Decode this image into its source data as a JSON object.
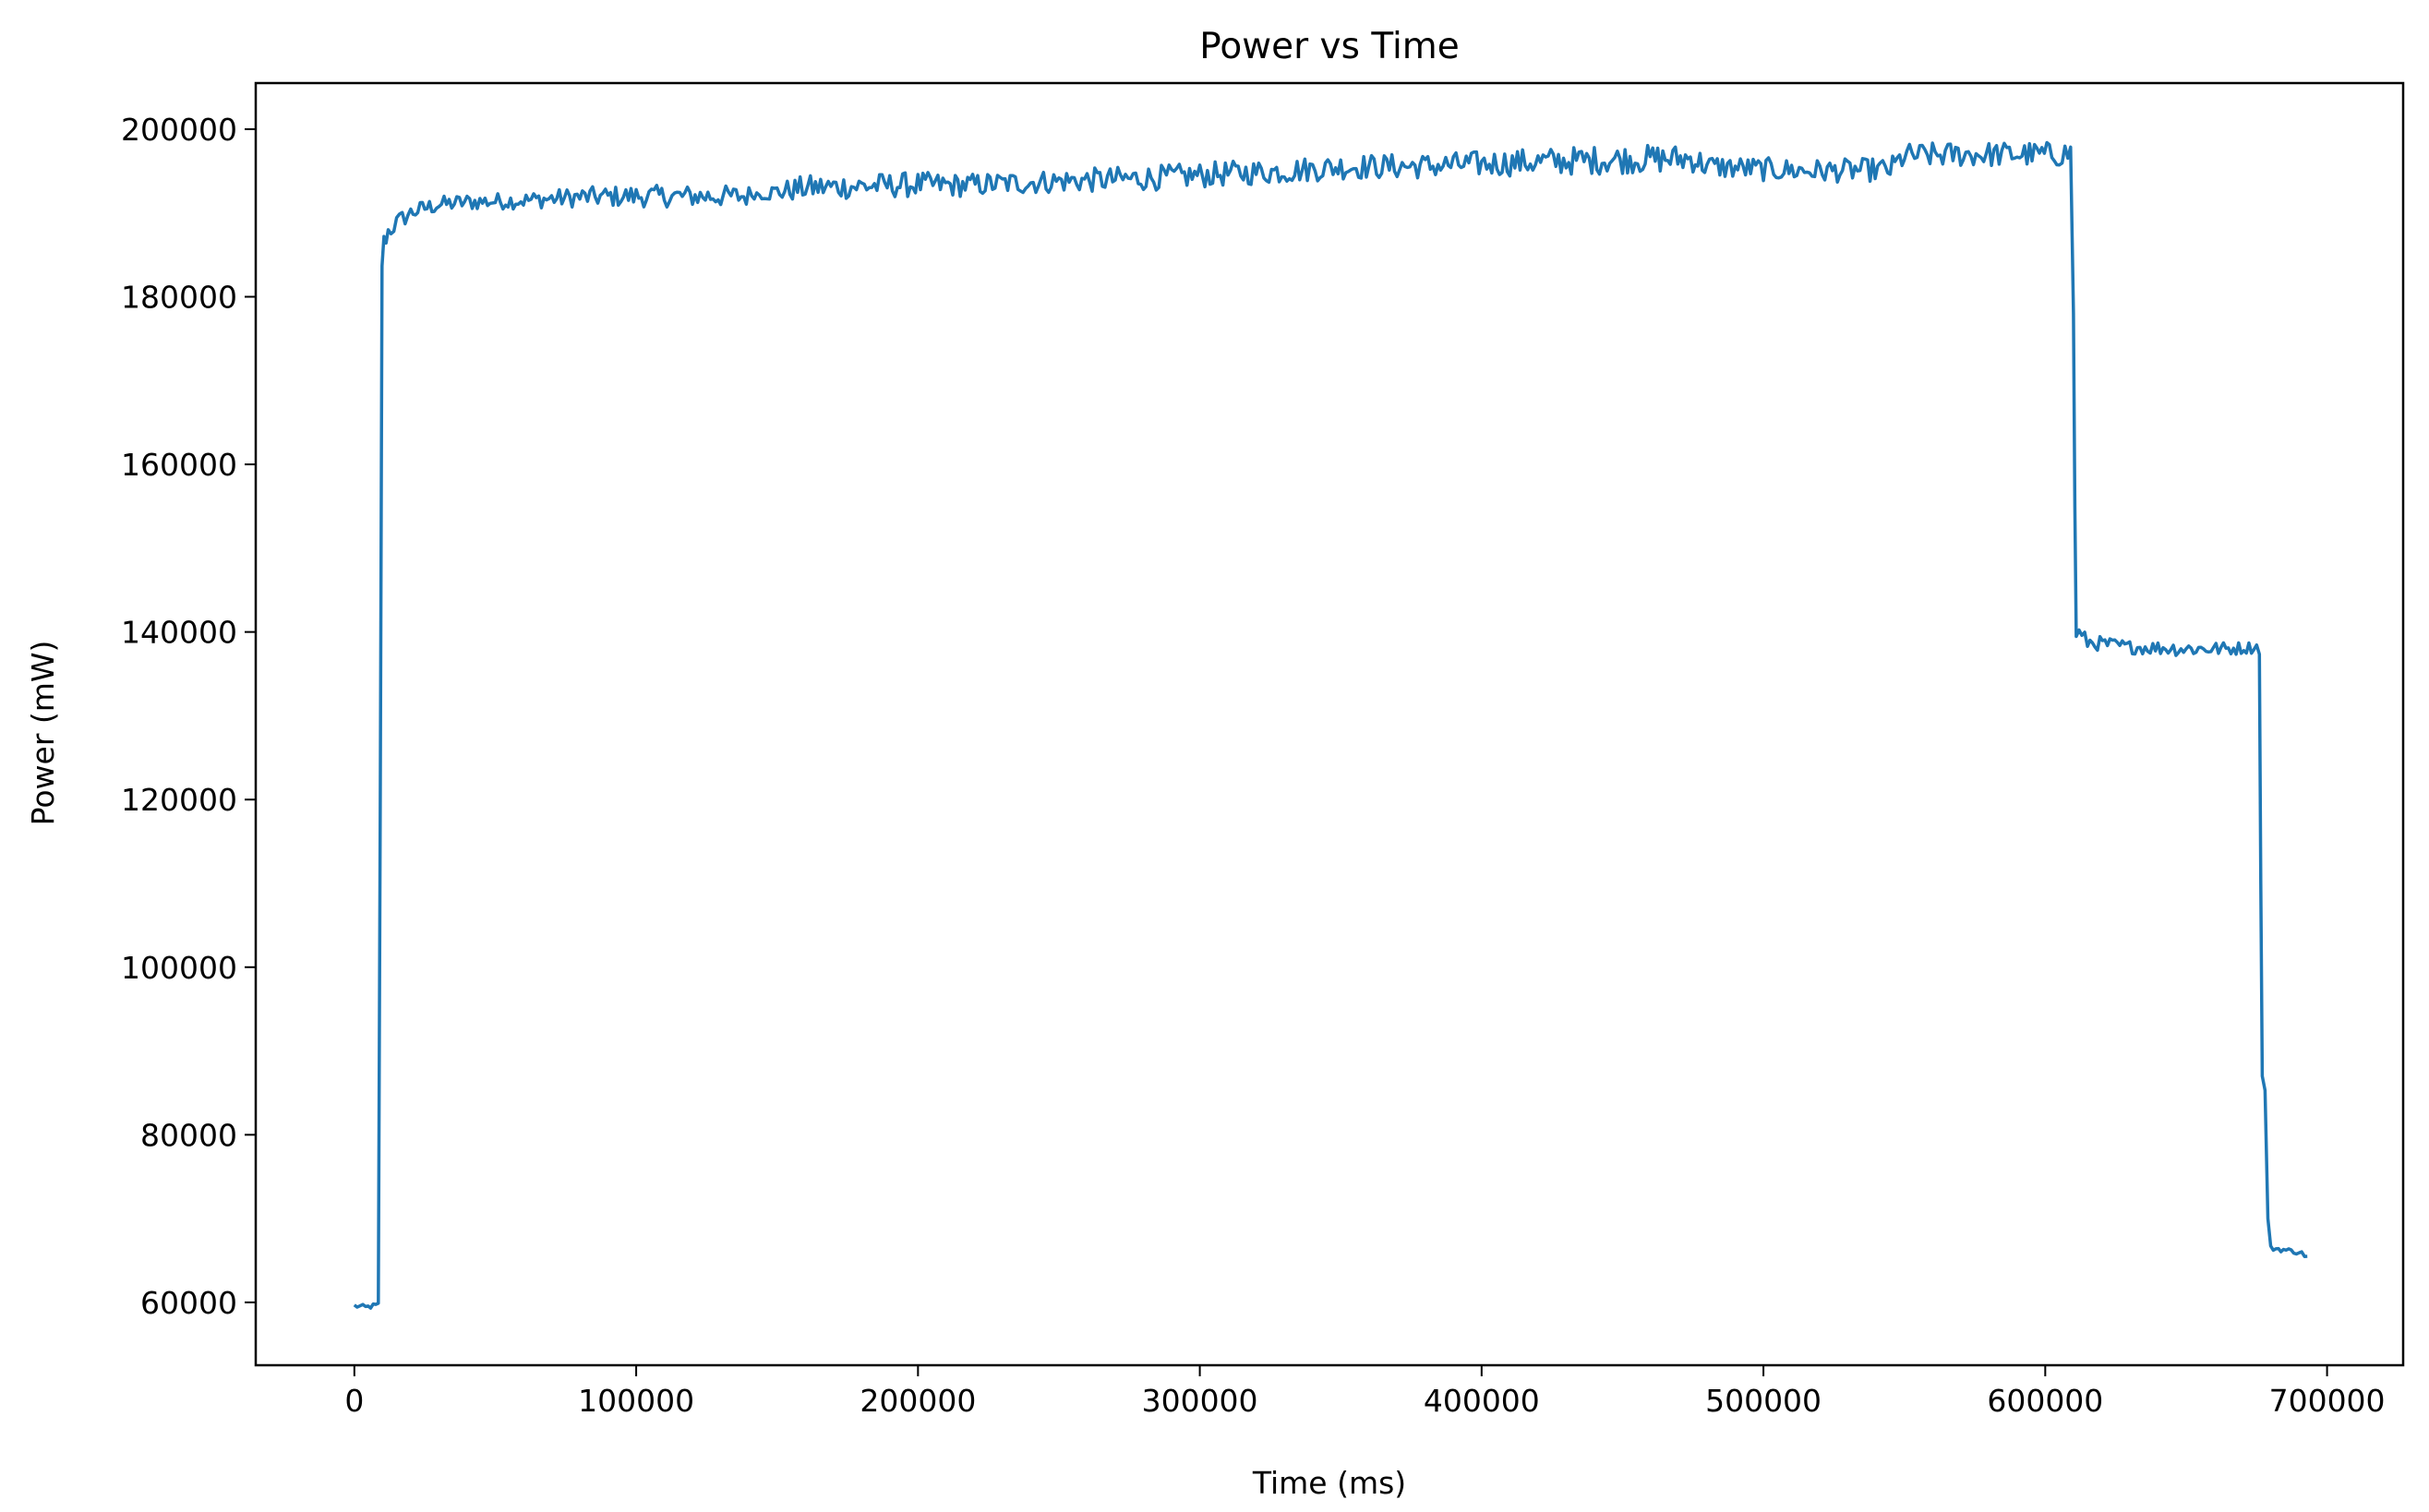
{
  "chart_data": {
    "type": "line",
    "title": "Power vs Time",
    "xlabel": "Time (ms)",
    "ylabel": "Power (mW)",
    "xlim": [
      -35000,
      727000
    ],
    "ylim": [
      52500,
      205500
    ],
    "xticks": [
      0,
      100000,
      200000,
      300000,
      400000,
      500000,
      600000,
      700000
    ],
    "xtick_labels": [
      "0",
      "100000",
      "200000",
      "300000",
      "400000",
      "500000",
      "600000",
      "700000"
    ],
    "yticks": [
      60000,
      80000,
      100000,
      120000,
      140000,
      160000,
      180000,
      200000
    ],
    "ytick_labels": [
      "60000",
      "80000",
      "100000",
      "120000",
      "140000",
      "160000",
      "180000",
      "200000"
    ],
    "grid": false,
    "line_color": "#1f77b4",
    "series": [
      {
        "x": [
          0,
          4000,
          8500,
          9200,
          9800,
          10500,
          12000,
          14000,
          17000,
          20000,
          25000,
          30000,
          40000,
          50000,
          60000,
          70000,
          80000,
          100000,
          120000,
          140000,
          141000,
          150000,
          160000,
          180000,
          200000,
          215000,
          230000,
          250000,
          270000,
          290000,
          310000,
          330000,
          350000,
          380000,
          410000,
          430000,
          450000,
          475000,
          480000,
          500000,
          520000,
          545000,
          550000,
          570000,
          590000,
          605000,
          609000,
          610000,
          610500,
          611000,
          615000,
          630000,
          650000,
          665000,
          675000,
          676000,
          676500,
          677000,
          678000,
          679000,
          680000,
          690000,
          693000
        ],
        "y": [
          59600,
          59400,
          59700,
          120000,
          184000,
          186500,
          187800,
          188500,
          189300,
          190000,
          190600,
          191000,
          191300,
          191400,
          191500,
          191700,
          191900,
          192000,
          192000,
          192000,
          192200,
          192500,
          193000,
          193200,
          193400,
          193300,
          193500,
          193800,
          194000,
          194300,
          194700,
          195000,
          195500,
          195600,
          196000,
          196200,
          196400,
          196500,
          195600,
          195200,
          195000,
          195200,
          196800,
          197000,
          197000,
          197000,
          197200,
          178000,
          155000,
          140000,
          138800,
          138200,
          138000,
          138000,
          138200,
          137600,
          110000,
          87000,
          85500,
          70000,
          66500,
          66000,
          65500
        ],
        "noise_amplitude": [
          300,
          300,
          300,
          0,
          1000,
          1200,
          1200,
          1200,
          1100,
          1000,
          1000,
          1000,
          1000,
          1000,
          1000,
          1100,
          1200,
          1300,
          1300,
          1300,
          500,
          1200,
          1500,
          1500,
          1500,
          1400,
          1400,
          1400,
          1500,
          1500,
          1500,
          1500,
          1500,
          1500,
          1600,
          1700,
          1700,
          1700,
          1400,
          1400,
          1400,
          1400,
          1500,
          1500,
          1500,
          1500,
          1500,
          0,
          0,
          1200,
          900,
          800,
          900,
          800,
          700,
          300,
          0,
          0,
          300,
          0,
          300,
          300,
          300
        ]
      }
    ]
  }
}
